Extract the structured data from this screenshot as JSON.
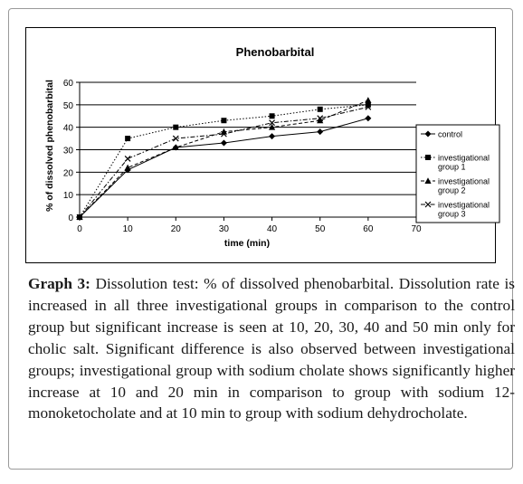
{
  "chart_data": {
    "type": "line",
    "title": "Phenobarbital",
    "xlabel": "time (min)",
    "ylabel": "% of dissolved phenobarbital",
    "xlim": [
      0,
      70
    ],
    "ylim": [
      0,
      60
    ],
    "xticks": [
      0,
      10,
      20,
      30,
      40,
      50,
      60,
      70
    ],
    "yticks": [
      0,
      10,
      20,
      30,
      40,
      50,
      60
    ],
    "x": [
      0,
      10,
      20,
      30,
      40,
      50,
      60
    ],
    "grid": "horizontal",
    "legend_position": "right",
    "series": [
      {
        "name": "control",
        "values": [
          0,
          21,
          31,
          33,
          36,
          38,
          44
        ],
        "marker": "diamond",
        "dash": "solid"
      },
      {
        "name": "investigational group 1",
        "values": [
          0,
          35,
          40,
          43,
          45,
          48,
          50
        ],
        "marker": "square",
        "dash": "dotted"
      },
      {
        "name": "investigational group 2",
        "values": [
          0,
          22,
          31,
          38,
          40,
          43,
          52
        ],
        "marker": "triangle",
        "dash": "dashed"
      },
      {
        "name": "investigational group 3",
        "values": [
          0,
          26,
          35,
          37,
          42,
          44,
          49
        ],
        "marker": "x",
        "dash": "dashdot"
      }
    ]
  },
  "caption": {
    "label": "Graph 3:",
    "text": " Dissolution test: % of dissolved phenobarbital. Dissolution rate is increased in all three investigational groups in comparison to the control group but significant increase is seen at 10, 20, 30, 40 and 50 min only for cholic salt. Significant difference is also observed between investigational groups; investigational group with sodium cholate shows significantly higher increase at 10 and 20 min in comparison to group with sodium 12-monoketocholate and at 10 min to group with sodium dehydrocholate."
  }
}
